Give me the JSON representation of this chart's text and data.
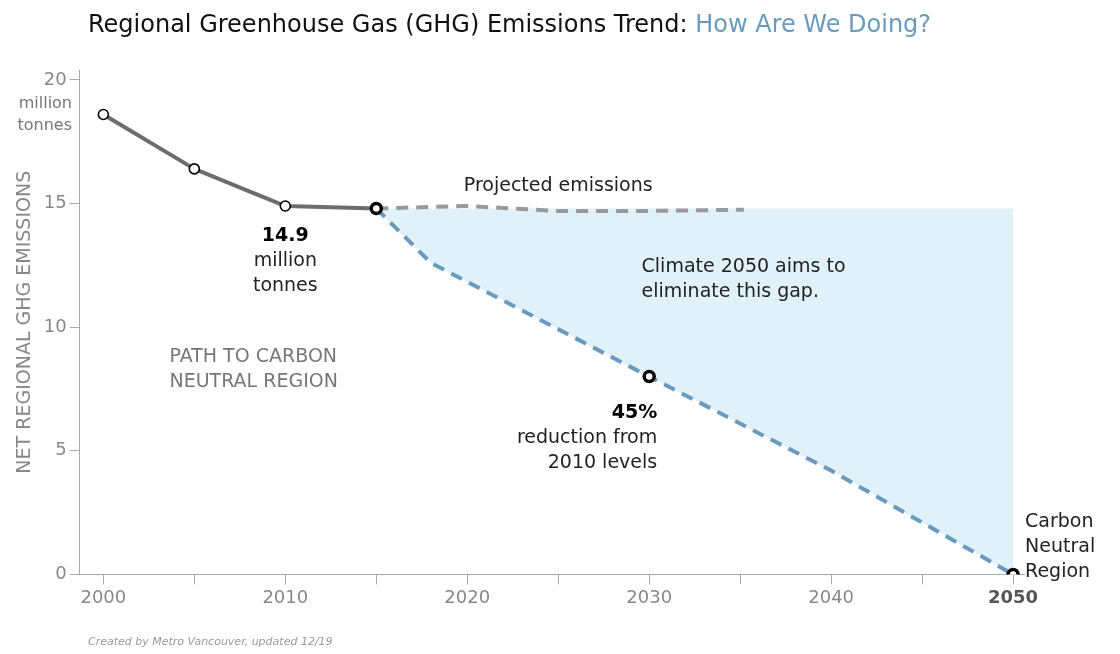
{
  "chart_data": {
    "type": "line",
    "title": "Regional Greenhouse Gas (GHG) Emissions Trend:",
    "subtitle": "How Are We Doing?",
    "ylabel": "NET REGIONAL GHG EMISSIONS",
    "xlim": [
      1998.7,
      2050.6
    ],
    "xticks": [
      2000,
      {
        "value": 2005,
        "label": null
      },
      2010,
      {
        "value": 2015,
        "label": null
      },
      2020,
      {
        "value": 2025,
        "label": null
      },
      2030,
      {
        "value": 2035,
        "label": null
      },
      2040,
      {
        "value": 2045,
        "label": null
      },
      2050
    ],
    "ylim": [
      0,
      20.4
    ],
    "yticks": [
      0,
      5,
      10,
      15,
      20
    ],
    "grid": false,
    "legend": false,
    "series": [
      {
        "color": "#6d6d6d",
        "marker": "circle",
        "line_style": "solid",
        "x": [
          2000,
          2005,
          2010,
          2015
        ],
        "values": [
          18.6,
          16.4,
          14.9,
          14.8
        ]
      },
      {
        "color": "#999999",
        "marker": "none",
        "line_style": "dashed",
        "x": [
          2015,
          2020,
          2025,
          2030,
          2035.2
        ],
        "values": [
          14.8,
          14.9,
          14.7,
          14.7,
          14.75
        ]
      },
      {
        "color": "#6a9bbf",
        "marker": "none",
        "line_style": "dashed",
        "x": [
          2015,
          2018,
          2030,
          2040,
          2050
        ],
        "values": [
          14.8,
          12.6,
          8.0,
          4.2,
          0
        ],
        "lower": [
          14.8,
          12.6,
          8.0,
          4.2,
          0
        ],
        "upper": [
          14.8,
          14.8,
          14.8,
          14.8,
          14.8
        ]
      },
      {
        "type": "scatter",
        "color": "#000000",
        "marker": "circle",
        "x": [
          2015,
          2030,
          2050
        ],
        "values": [
          14.8,
          8.0,
          0
        ]
      }
    ],
    "annotations": [
      {
        "text": "14.9\nmillion\ntonnes",
        "x": 2010,
        "y": 14.9
      },
      {
        "text": "45%\nreduction from\n2010 levels",
        "x": 2030,
        "y": 8.0
      },
      {
        "text": "Carbon\nNeutral\nRegion",
        "x": 2050,
        "y": 0
      },
      {
        "text": "Projected emissions",
        "x": 2025,
        "y": 14.7
      },
      "Climate 2050 aims to\neliminate this gap.",
      "PATH TO CARBON\nNEUTRAL REGION",
      "million\ntonnes",
      "Created by Metro Vancouver, updated 12/19"
    ]
  }
}
